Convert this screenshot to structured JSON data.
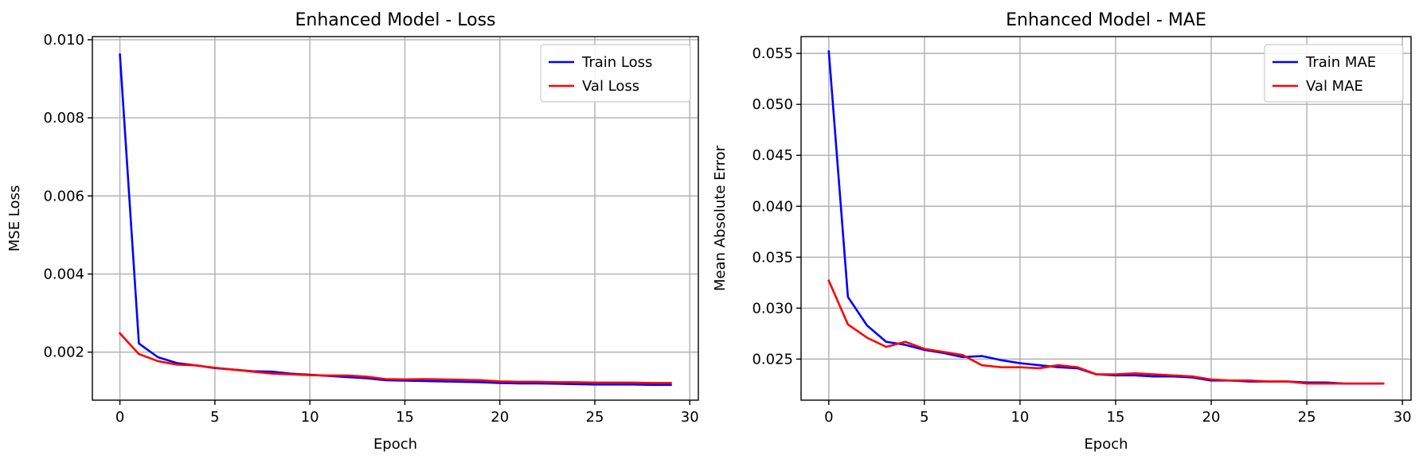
{
  "chart_data": [
    {
      "type": "line",
      "title": "Enhanced Model - Loss",
      "xlabel": "Epoch",
      "ylabel": "MSE Loss",
      "xlim": [
        -1.45,
        30.45
      ],
      "ylim": [
        0.00077,
        0.01008
      ],
      "xticks": [
        0,
        5,
        10,
        15,
        20,
        25,
        30
      ],
      "xtick_labels": [
        "0",
        "5",
        "10",
        "15",
        "20",
        "25",
        "30"
      ],
      "yticks": [
        0.002,
        0.004,
        0.006,
        0.008,
        0.01
      ],
      "ytick_labels": [
        "0.002",
        "0.004",
        "0.006",
        "0.008",
        "0.010"
      ],
      "grid": true,
      "legend_position": "top-right",
      "series": [
        {
          "name": "Train Loss",
          "color": "#0000ff",
          "x": [
            0,
            1,
            2,
            3,
            4,
            5,
            6,
            7,
            8,
            9,
            10,
            11,
            12,
            13,
            14,
            15,
            16,
            17,
            18,
            19,
            20,
            21,
            22,
            23,
            24,
            25,
            26,
            27,
            28,
            29
          ],
          "y": [
            0.00962,
            0.00222,
            0.00187,
            0.00172,
            0.00166,
            0.00159,
            0.00155,
            0.00151,
            0.0015,
            0.00145,
            0.00142,
            0.00139,
            0.00136,
            0.00133,
            0.00128,
            0.00127,
            0.00126,
            0.00125,
            0.00124,
            0.00123,
            0.00121,
            0.0012,
            0.0012,
            0.00119,
            0.00118,
            0.00117,
            0.00117,
            0.00117,
            0.00116,
            0.00116
          ]
        },
        {
          "name": "Val Loss",
          "color": "#ff0000",
          "x": [
            0,
            1,
            2,
            3,
            4,
            5,
            6,
            7,
            8,
            9,
            10,
            11,
            12,
            13,
            14,
            15,
            16,
            17,
            18,
            19,
            20,
            21,
            22,
            23,
            24,
            25,
            26,
            27,
            28,
            29
          ],
          "y": [
            0.00248,
            0.00195,
            0.00177,
            0.00168,
            0.00166,
            0.0016,
            0.00155,
            0.0015,
            0.00145,
            0.00143,
            0.00141,
            0.0014,
            0.0014,
            0.00137,
            0.00131,
            0.0013,
            0.00131,
            0.0013,
            0.00129,
            0.00128,
            0.00125,
            0.00124,
            0.00124,
            0.00123,
            0.00123,
            0.00122,
            0.00122,
            0.00122,
            0.00121,
            0.00121
          ]
        }
      ]
    },
    {
      "type": "line",
      "title": "Enhanced Model - MAE",
      "xlabel": "Epoch",
      "ylabel": "Mean Absolute Error",
      "xlim": [
        -1.45,
        30.45
      ],
      "ylim": [
        0.02097,
        0.05665
      ],
      "xticks": [
        0,
        5,
        10,
        15,
        20,
        25,
        30
      ],
      "xtick_labels": [
        "0",
        "5",
        "10",
        "15",
        "20",
        "25",
        "30"
      ],
      "yticks": [
        0.025,
        0.03,
        0.035,
        0.04,
        0.045,
        0.05,
        0.055
      ],
      "ytick_labels": [
        "0.025",
        "0.030",
        "0.035",
        "0.040",
        "0.045",
        "0.050",
        "0.055"
      ],
      "grid": true,
      "legend_position": "top-right",
      "series": [
        {
          "name": "Train MAE",
          "color": "#0000ff",
          "x": [
            0,
            1,
            2,
            3,
            4,
            5,
            6,
            7,
            8,
            9,
            10,
            11,
            12,
            13,
            14,
            15,
            16,
            17,
            18,
            19,
            20,
            21,
            22,
            23,
            24,
            25,
            26,
            27,
            28,
            29
          ],
          "y": [
            0.0552,
            0.0311,
            0.0283,
            0.0267,
            0.0264,
            0.0259,
            0.0256,
            0.0252,
            0.0253,
            0.0249,
            0.0246,
            0.0244,
            0.0242,
            0.0241,
            0.0235,
            0.0234,
            0.0234,
            0.0233,
            0.0233,
            0.0232,
            0.0229,
            0.0229,
            0.0228,
            0.0228,
            0.0228,
            0.0227,
            0.0227,
            0.0226,
            0.0226,
            0.0226
          ]
        },
        {
          "name": "Val MAE",
          "color": "#ff0000",
          "x": [
            0,
            1,
            2,
            3,
            4,
            5,
            6,
            7,
            8,
            9,
            10,
            11,
            12,
            13,
            14,
            15,
            16,
            17,
            18,
            19,
            20,
            21,
            22,
            23,
            24,
            25,
            26,
            27,
            28,
            29
          ],
          "y": [
            0.0327,
            0.0284,
            0.0271,
            0.0262,
            0.0267,
            0.026,
            0.0257,
            0.0254,
            0.0244,
            0.0242,
            0.0242,
            0.0241,
            0.0244,
            0.0242,
            0.0235,
            0.0235,
            0.0236,
            0.0235,
            0.0234,
            0.0233,
            0.023,
            0.0229,
            0.0229,
            0.0228,
            0.0228,
            0.0226,
            0.0226,
            0.0226,
            0.0226,
            0.0226
          ]
        }
      ]
    }
  ]
}
